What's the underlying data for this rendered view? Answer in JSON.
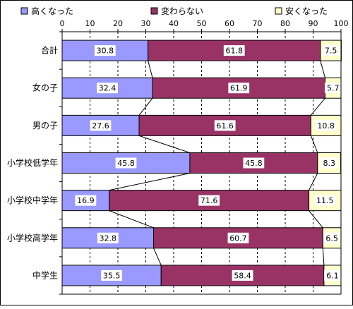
{
  "chart_data": {
    "type": "bar",
    "orientation": "horizontal",
    "stacked": true,
    "connector_lines": true,
    "title": "",
    "xlabel": "",
    "ylabel": "",
    "xlim": [
      0,
      100
    ],
    "x_ticks": [
      "0",
      "10",
      "20",
      "30",
      "40",
      "50",
      "60",
      "70",
      "80",
      "90",
      "100"
    ],
    "grid": "vertical dashed",
    "legend_position": "top",
    "categories": [
      "合計",
      "女の子",
      "男の子",
      "小学校低学年",
      "小学校中学年",
      "小学校高学年",
      "中学生"
    ],
    "series": [
      {
        "name": "高くなった",
        "color": "#9999ff",
        "values": [
          30.8,
          32.4,
          27.6,
          45.8,
          16.9,
          32.8,
          35.5
        ]
      },
      {
        "name": "変わらない",
        "color": "#993366",
        "values": [
          61.8,
          61.9,
          61.6,
          45.8,
          71.6,
          60.7,
          58.4
        ]
      },
      {
        "name": "安くなった",
        "color": "#ffffcc",
        "values": [
          7.5,
          5.7,
          10.8,
          8.3,
          11.5,
          6.5,
          6.1
        ]
      }
    ]
  }
}
